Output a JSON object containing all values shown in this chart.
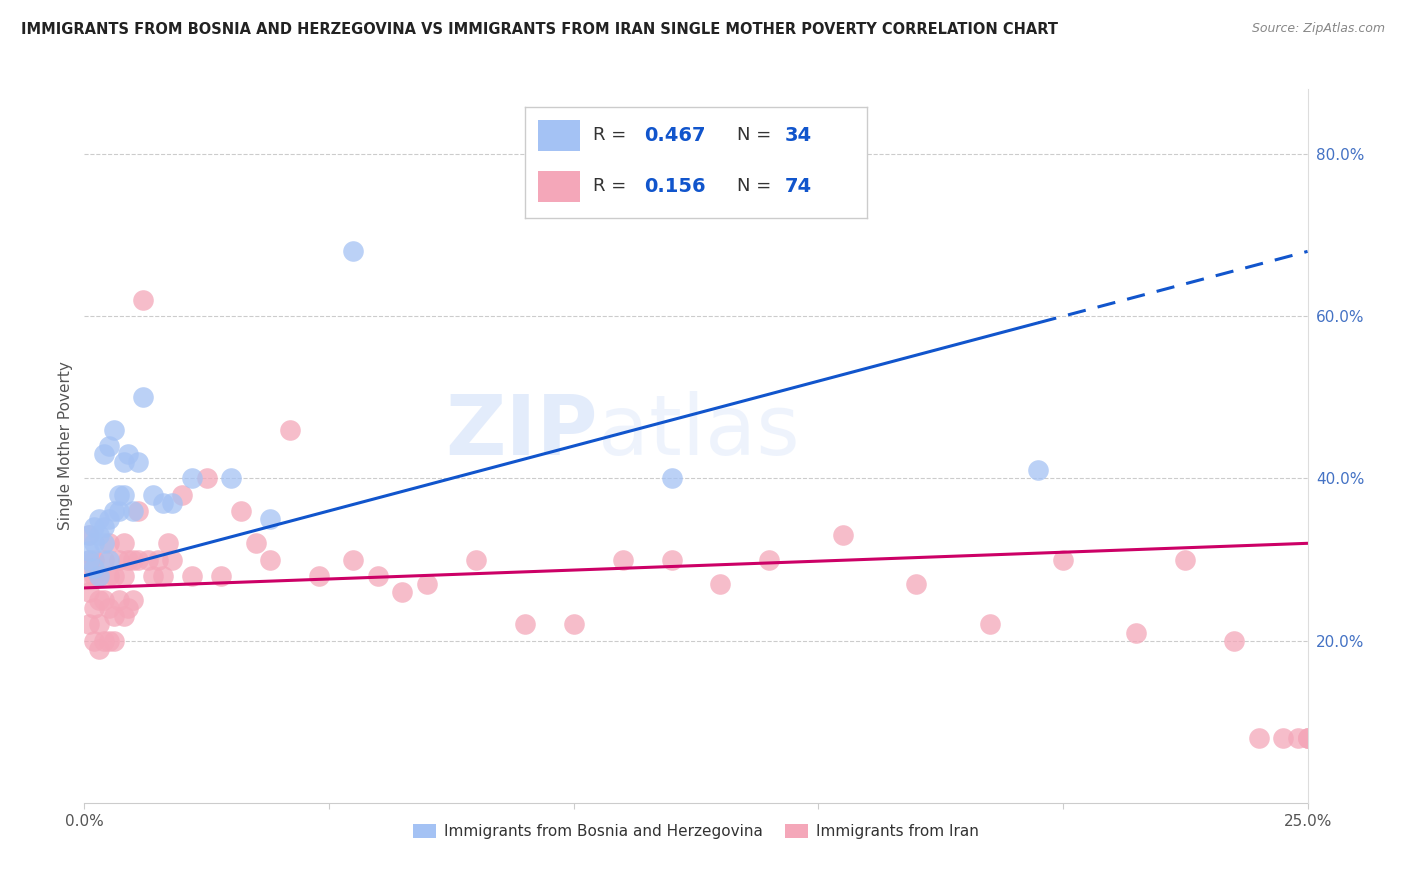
{
  "title": "IMMIGRANTS FROM BOSNIA AND HERZEGOVINA VS IMMIGRANTS FROM IRAN SINGLE MOTHER POVERTY CORRELATION CHART",
  "source": "Source: ZipAtlas.com",
  "ylabel": "Single Mother Poverty",
  "right_yticklabels": [
    "20.0%",
    "40.0%",
    "60.0%",
    "80.0%"
  ],
  "right_ytick_vals": [
    0.2,
    0.4,
    0.6,
    0.8
  ],
  "watermark_zip": "ZIP",
  "watermark_atlas": "atlas",
  "legend_blue_r": "0.467",
  "legend_blue_n": "34",
  "legend_pink_r": "0.156",
  "legend_pink_n": "74",
  "blue_scatter_color": "#a4c2f4",
  "pink_scatter_color": "#f4a7b9",
  "blue_line_color": "#1155cc",
  "pink_line_color": "#cc0066",
  "legend_text_color": "#1155cc",
  "legend_rn_color": "#1155cc",
  "xlim": [
    0.0,
    0.25
  ],
  "ylim": [
    0.0,
    0.88
  ],
  "blue_x": [
    0.001,
    0.001,
    0.001,
    0.002,
    0.002,
    0.002,
    0.003,
    0.003,
    0.003,
    0.004,
    0.004,
    0.004,
    0.005,
    0.005,
    0.005,
    0.006,
    0.006,
    0.007,
    0.007,
    0.008,
    0.008,
    0.009,
    0.01,
    0.011,
    0.012,
    0.014,
    0.016,
    0.018,
    0.022,
    0.03,
    0.038,
    0.055,
    0.12,
    0.195
  ],
  "blue_y": [
    0.3,
    0.31,
    0.33,
    0.29,
    0.32,
    0.34,
    0.28,
    0.33,
    0.35,
    0.32,
    0.34,
    0.43,
    0.3,
    0.35,
    0.44,
    0.36,
    0.46,
    0.36,
    0.38,
    0.38,
    0.42,
    0.43,
    0.36,
    0.42,
    0.5,
    0.38,
    0.37,
    0.37,
    0.4,
    0.4,
    0.35,
    0.68,
    0.4,
    0.41
  ],
  "pink_x": [
    0.001,
    0.001,
    0.001,
    0.001,
    0.001,
    0.002,
    0.002,
    0.002,
    0.002,
    0.003,
    0.003,
    0.003,
    0.003,
    0.004,
    0.004,
    0.004,
    0.005,
    0.005,
    0.005,
    0.005,
    0.006,
    0.006,
    0.006,
    0.007,
    0.007,
    0.008,
    0.008,
    0.008,
    0.009,
    0.009,
    0.01,
    0.01,
    0.011,
    0.011,
    0.012,
    0.013,
    0.014,
    0.015,
    0.016,
    0.017,
    0.018,
    0.02,
    0.022,
    0.025,
    0.028,
    0.032,
    0.035,
    0.038,
    0.042,
    0.048,
    0.055,
    0.06,
    0.065,
    0.07,
    0.08,
    0.09,
    0.1,
    0.11,
    0.12,
    0.13,
    0.14,
    0.155,
    0.17,
    0.185,
    0.2,
    0.215,
    0.225,
    0.235,
    0.24,
    0.245,
    0.248,
    0.25,
    0.25,
    0.25
  ],
  "pink_y": [
    0.22,
    0.26,
    0.28,
    0.3,
    0.33,
    0.2,
    0.24,
    0.28,
    0.3,
    0.19,
    0.22,
    0.25,
    0.28,
    0.2,
    0.25,
    0.3,
    0.2,
    0.24,
    0.28,
    0.32,
    0.2,
    0.23,
    0.28,
    0.25,
    0.3,
    0.23,
    0.28,
    0.32,
    0.24,
    0.3,
    0.25,
    0.3,
    0.3,
    0.36,
    0.62,
    0.3,
    0.28,
    0.3,
    0.28,
    0.32,
    0.3,
    0.38,
    0.28,
    0.4,
    0.28,
    0.36,
    0.32,
    0.3,
    0.46,
    0.28,
    0.3,
    0.28,
    0.26,
    0.27,
    0.3,
    0.22,
    0.22,
    0.3,
    0.3,
    0.27,
    0.3,
    0.33,
    0.27,
    0.22,
    0.3,
    0.21,
    0.3,
    0.2,
    0.08,
    0.08,
    0.08,
    0.08,
    0.08,
    0.08
  ]
}
